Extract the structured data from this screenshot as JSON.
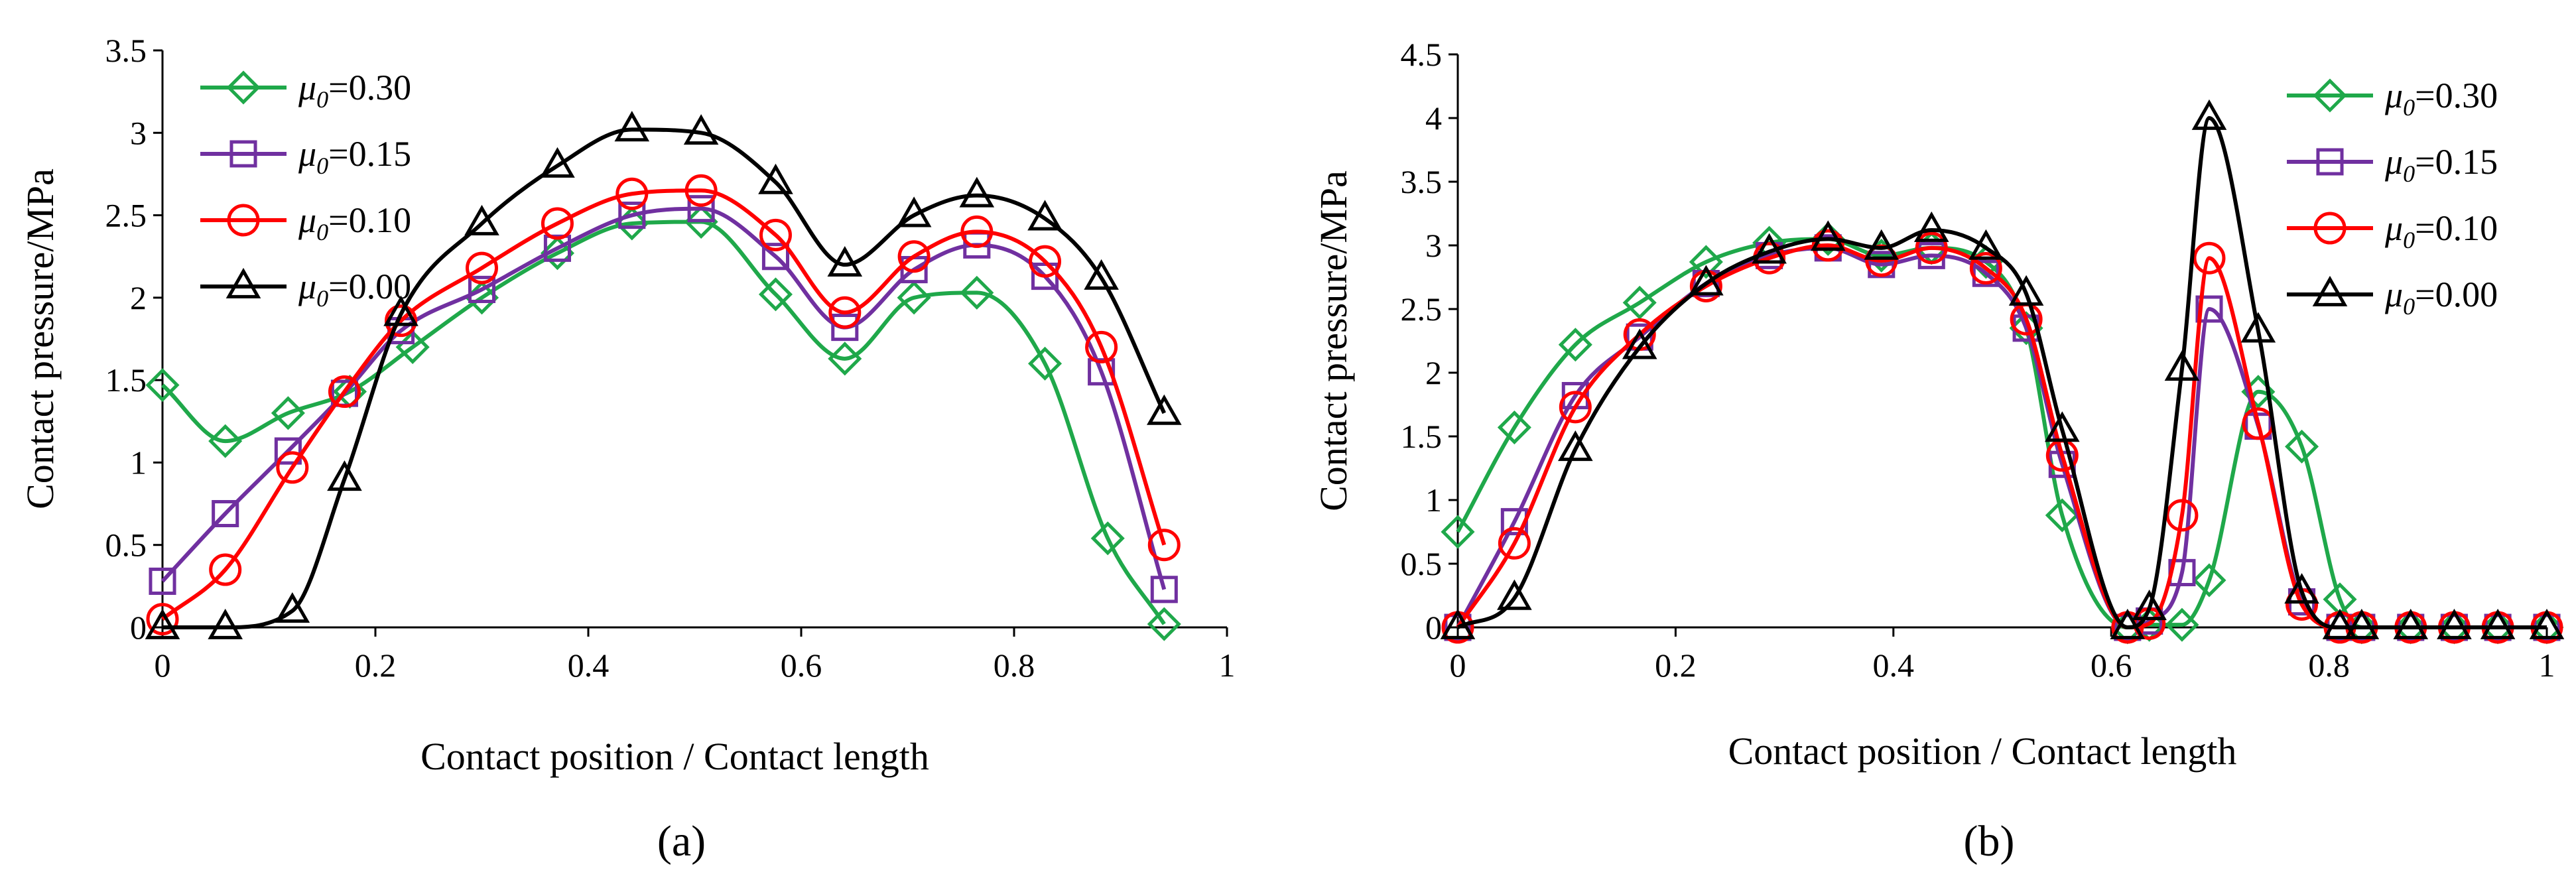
{
  "figure": {
    "panels": [
      "(a)",
      "(b)"
    ]
  },
  "series_styles": [
    {
      "name": "mu0=0.30",
      "color": "#1fa84a",
      "marker": "diamond"
    },
    {
      "name": "mu0=0.15",
      "color": "#7030a0",
      "marker": "square"
    },
    {
      "name": "mu0=0.10",
      "color": "#ff0000",
      "marker": "circle"
    },
    {
      "name": "mu0=0.00",
      "color": "#000000",
      "marker": "triangle"
    }
  ],
  "chart_data": [
    {
      "type": "line",
      "panel_label": "(a)",
      "xlabel": "Contact position / Contact length",
      "ylabel": "Contact pressure/MPa",
      "xlim": [
        0,
        1
      ],
      "ylim": [
        0,
        3.5
      ],
      "xticks": [
        0,
        0.2,
        0.4,
        0.6,
        0.8,
        1
      ],
      "xtick_labels": [
        "0",
        "0.2",
        "0.4",
        "0.6",
        "0.8",
        "1"
      ],
      "yticks": [
        0,
        0.5,
        1,
        1.5,
        2,
        2.5,
        3,
        3.5
      ],
      "ytick_labels": [
        "0",
        "0.5",
        "1",
        "1.5",
        "2",
        "2.5",
        "3",
        "3.5"
      ],
      "grid": false,
      "legend_position": "top-left",
      "series": [
        {
          "name": "μ0=0.30",
          "legend_symbol": "μ",
          "legend_sub": "0",
          "legend_value": "=0.30",
          "x": [
            0,
            0.059,
            0.118,
            0.176,
            0.235,
            0.3,
            0.371,
            0.441,
            0.506,
            0.576,
            0.641,
            0.706,
            0.765,
            0.829,
            0.888,
            0.941
          ],
          "y": [
            1.47,
            1.13,
            1.3,
            1.43,
            1.7,
            2.0,
            2.27,
            2.45,
            2.46,
            2.02,
            1.63,
            2.0,
            2.03,
            1.6,
            0.54,
            0.02
          ]
        },
        {
          "name": "μ0=0.15",
          "legend_symbol": "μ",
          "legend_sub": "0",
          "legend_value": "=0.15",
          "x": [
            0,
            0.059,
            0.118,
            0.171,
            0.224,
            0.3,
            0.371,
            0.441,
            0.506,
            0.576,
            0.641,
            0.706,
            0.765,
            0.829,
            0.882,
            0.941
          ],
          "y": [
            0.28,
            0.69,
            1.07,
            1.42,
            1.8,
            2.05,
            2.3,
            2.5,
            2.54,
            2.25,
            1.82,
            2.17,
            2.32,
            2.13,
            1.55,
            0.23
          ]
        },
        {
          "name": "μ0=0.10",
          "legend_symbol": "μ",
          "legend_sub": "0",
          "legend_value": "=0.10",
          "x": [
            0,
            0.059,
            0.122,
            0.171,
            0.224,
            0.3,
            0.371,
            0.441,
            0.506,
            0.576,
            0.641,
            0.706,
            0.765,
            0.829,
            0.882,
            0.941
          ],
          "y": [
            0.05,
            0.35,
            0.97,
            1.43,
            1.86,
            2.18,
            2.45,
            2.63,
            2.65,
            2.38,
            1.91,
            2.25,
            2.4,
            2.22,
            1.7,
            0.5
          ]
        },
        {
          "name": "μ0=0.00",
          "legend_symbol": "μ",
          "legend_sub": "0",
          "legend_value": "=0.00",
          "x": [
            0,
            0.059,
            0.122,
            0.171,
            0.224,
            0.3,
            0.371,
            0.441,
            0.506,
            0.576,
            0.641,
            0.706,
            0.765,
            0.829,
            0.882,
            0.941
          ],
          "y": [
            0.0,
            0.0,
            0.1,
            0.9,
            1.9,
            2.45,
            2.8,
            3.02,
            3.0,
            2.7,
            2.2,
            2.5,
            2.62,
            2.48,
            2.12,
            1.3
          ]
        }
      ]
    },
    {
      "type": "line",
      "panel_label": "(b)",
      "xlabel": "Contact position / Contact length",
      "ylabel": "Contact pressure/MPa",
      "xlim": [
        0,
        1
      ],
      "ylim": [
        0,
        4.5
      ],
      "xticks": [
        0,
        0.2,
        0.4,
        0.6,
        0.8,
        1
      ],
      "xtick_labels": [
        "0",
        "0.2",
        "0.4",
        "0.6",
        "0.8",
        "1"
      ],
      "yticks": [
        0,
        0.5,
        1,
        1.5,
        2,
        2.5,
        3,
        3.5,
        4,
        4.5
      ],
      "ytick_labels": [
        "0",
        "0.5",
        "1",
        "1.5",
        "2",
        "2.5",
        "3",
        "3.5",
        "4",
        "4.5"
      ],
      "grid": false,
      "legend_position": "top-right",
      "series": [
        {
          "name": "μ0=0.30",
          "legend_symbol": "μ",
          "legend_sub": "0",
          "legend_value": "=0.30",
          "x": [
            0,
            0.052,
            0.108,
            0.167,
            0.228,
            0.286,
            0.34,
            0.389,
            0.435,
            0.485,
            0.522,
            0.555,
            0.615,
            0.635,
            0.665,
            0.69,
            0.735,
            0.775,
            0.81,
            0.83,
            0.875,
            0.915,
            0.955,
            1
          ],
          "y": [
            0.75,
            1.57,
            2.22,
            2.55,
            2.87,
            3.02,
            3.05,
            2.92,
            2.98,
            2.87,
            2.35,
            0.88,
            0.0,
            0.02,
            0.02,
            0.37,
            1.85,
            1.42,
            0.22,
            0.0,
            0.0,
            0.0,
            0.0,
            0.0
          ]
        },
        {
          "name": "μ0=0.15",
          "legend_symbol": "μ",
          "legend_sub": "0",
          "legend_value": "=0.15",
          "x": [
            0,
            0.052,
            0.108,
            0.167,
            0.228,
            0.286,
            0.34,
            0.389,
            0.435,
            0.485,
            0.522,
            0.555,
            0.615,
            0.635,
            0.665,
            0.69,
            0.735,
            0.775,
            0.81,
            0.83,
            0.875,
            0.915,
            0.955,
            1
          ],
          "y": [
            0.0,
            0.83,
            1.82,
            2.28,
            2.7,
            2.92,
            2.98,
            2.85,
            2.92,
            2.78,
            2.35,
            1.28,
            0.0,
            0.05,
            0.43,
            2.5,
            1.58,
            0.2,
            0.0,
            0.0,
            0.0,
            0.0,
            0.0,
            0.0
          ]
        },
        {
          "name": "μ0=0.10",
          "legend_symbol": "μ",
          "legend_sub": "0",
          "legend_value": "=0.10",
          "x": [
            0,
            0.052,
            0.108,
            0.167,
            0.228,
            0.286,
            0.34,
            0.389,
            0.435,
            0.485,
            0.522,
            0.555,
            0.615,
            0.635,
            0.665,
            0.69,
            0.735,
            0.775,
            0.81,
            0.83,
            0.875,
            0.915,
            0.955,
            1
          ],
          "y": [
            0.0,
            0.66,
            1.73,
            2.3,
            2.68,
            2.9,
            3.0,
            2.88,
            2.98,
            2.82,
            2.42,
            1.35,
            0.0,
            0.03,
            0.88,
            2.9,
            1.6,
            0.18,
            0.0,
            0.0,
            0.0,
            0.0,
            0.0,
            0.0
          ]
        },
        {
          "name": "μ0=0.00",
          "legend_symbol": "μ",
          "legend_sub": "0",
          "legend_value": "=0.00",
          "x": [
            0,
            0.052,
            0.108,
            0.167,
            0.228,
            0.286,
            0.34,
            0.389,
            0.435,
            0.485,
            0.522,
            0.555,
            0.615,
            0.635,
            0.665,
            0.69,
            0.735,
            0.775,
            0.81,
            0.83,
            0.875,
            0.915,
            0.955,
            1
          ],
          "y": [
            0.0,
            0.23,
            1.4,
            2.2,
            2.7,
            2.95,
            3.05,
            2.98,
            3.12,
            2.98,
            2.62,
            1.55,
            0.0,
            0.15,
            2.03,
            4.0,
            2.33,
            0.28,
            0.0,
            0.0,
            0.0,
            0.0,
            0.0,
            0.0
          ]
        }
      ]
    }
  ]
}
